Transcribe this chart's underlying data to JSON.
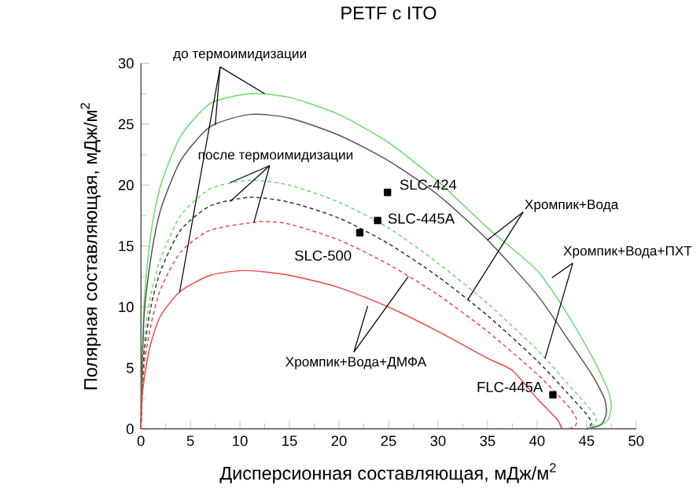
{
  "chart_data": {
    "type": "line",
    "title": "PETF с ITO",
    "xlabel": "Дисперсионная составляющая, мДж/м$^{2}$",
    "ylabel": "Полярная составляющая, мДж/м$^{2}$",
    "xlim": [
      0,
      50
    ],
    "ylim": [
      0,
      30
    ],
    "xticks": [
      0,
      5,
      10,
      15,
      20,
      25,
      30,
      35,
      40,
      45,
      50
    ],
    "yticks": [
      0,
      5,
      10,
      15,
      20,
      25,
      30
    ],
    "annotations": [
      {
        "text": "до термоимидизации",
        "x": 12.5,
        "y": 27.5
      },
      {
        "text": "после термоимидизации",
        "x": 9,
        "y": 20.2
      },
      {
        "text": "Хромпик+Вода",
        "x": 33,
        "y": 10.6
      },
      {
        "text": "Хромпик+Вода+ПХТ",
        "x": 41.5,
        "y": 12.4
      },
      {
        "text": "Хромпик+Вода+ДМФА",
        "x": 22.9,
        "y": 10.1
      }
    ],
    "series": [
      {
        "color": "#66dd66",
        "line_style": "solid",
        "x": [
          0,
          0.3,
          1,
          2,
          4,
          7,
          11,
          15,
          20,
          25,
          30,
          35,
          40,
          43,
          45.5,
          47,
          47.5,
          47.2,
          46.2,
          45
        ],
        "values": [
          0,
          10,
          16,
          20,
          24,
          26.7,
          27.5,
          27.2,
          25.8,
          23.5,
          20.3,
          16.5,
          13,
          9.5,
          6,
          3.5,
          2,
          0.8,
          0.2,
          0
        ]
      },
      {
        "color": "#555555",
        "line_style": "solid",
        "x": [
          0,
          0.3,
          1,
          2,
          4,
          7,
          11,
          15,
          20,
          25,
          30,
          35,
          40,
          43,
          45.5,
          46.8,
          47,
          46.5,
          45
        ],
        "values": [
          0,
          9,
          14,
          18,
          22,
          24.8,
          25.8,
          25.5,
          24.1,
          22,
          19.2,
          15.5,
          11,
          7.5,
          4.5,
          2.5,
          1.3,
          0.4,
          0
        ]
      },
      {
        "color": "#ee4444",
        "line_style": "solid",
        "x": [
          0,
          0.1,
          0.5,
          1,
          2,
          4,
          7,
          10.5,
          15,
          20,
          25,
          30,
          35,
          37.5,
          40,
          42,
          42.5
        ],
        "values": [
          0,
          2.5,
          5,
          7,
          9.3,
          11.3,
          12.6,
          13,
          12.6,
          11.6,
          10,
          8,
          5.8,
          4.8,
          2.5,
          0.8,
          0
        ]
      },
      {
        "color": "#66dd66",
        "line_style": "dashed",
        "x": [
          0,
          0.3,
          1,
          2,
          4,
          7,
          11,
          15,
          20,
          25,
          30,
          35,
          40,
          43,
          45.5,
          46,
          45.5,
          45
        ],
        "values": [
          0,
          7,
          11,
          14,
          17.5,
          19.7,
          20.4,
          20,
          18.6,
          16.5,
          13.6,
          10.3,
          6.5,
          3.8,
          1.5,
          0.7,
          0.2,
          0
        ]
      },
      {
        "color": "#333333",
        "line_style": "dashed",
        "x": [
          0,
          0.3,
          1,
          2,
          4,
          7,
          11,
          15,
          20,
          25,
          30,
          35,
          40,
          43,
          45,
          45.5,
          45.2,
          45
        ],
        "values": [
          0,
          6,
          10,
          13,
          16.3,
          18.3,
          19,
          18.6,
          17.3,
          15.2,
          12.5,
          9.3,
          5.6,
          3,
          1.2,
          0.5,
          0.1,
          0
        ]
      },
      {
        "color": "#ee4444",
        "line_style": "dashed",
        "x": [
          0,
          0.3,
          1,
          2,
          4,
          7,
          12,
          15,
          20,
          25,
          30,
          35,
          40,
          43,
          44,
          43.8,
          43
        ],
        "values": [
          0,
          5,
          8.5,
          11.5,
          14.5,
          16.3,
          17,
          16.8,
          15.5,
          13.5,
          11,
          8,
          4.5,
          2,
          0.8,
          0.2,
          0
        ]
      },
      {
        "type": "scatter",
        "name": "SLC-424",
        "color": "#000000",
        "marker": "square",
        "x": [
          24.9
        ],
        "values": [
          19.4
        ]
      },
      {
        "type": "scatter",
        "name": "SLC-445A",
        "color": "#000000",
        "marker": "square",
        "x": [
          23.9
        ],
        "values": [
          17.1
        ]
      },
      {
        "type": "scatter",
        "name": "SLC-500",
        "color": "#000000",
        "marker": "square",
        "x": [
          22.1
        ],
        "values": [
          16.1
        ]
      },
      {
        "type": "scatter",
        "name": "FLC-445A",
        "color": "#000000",
        "marker": "square",
        "x": [
          41.6
        ],
        "values": [
          2.8
        ]
      }
    ]
  }
}
